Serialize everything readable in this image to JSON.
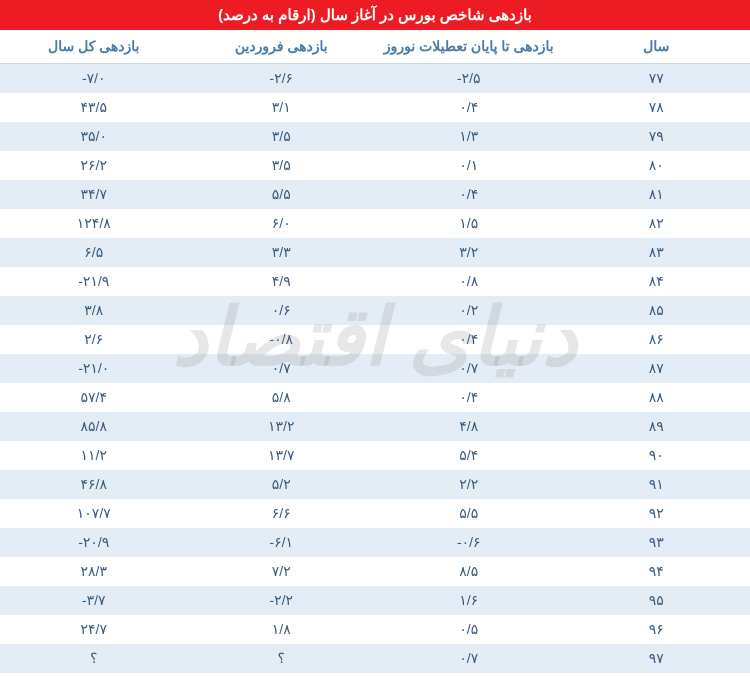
{
  "title": "بازدهی شاخص بورس در آغاز سال (ارقام به درصد)",
  "watermark": "دنیای اقتصاد",
  "colors": {
    "title_bg": "#ed1c24",
    "title_text": "#ffffff",
    "header_text": "#4a7aa8",
    "cell_text": "#3a5a7a",
    "row_odd_bg": "#e4edf5",
    "row_even_bg": "#ffffff",
    "watermark_color": "rgba(120,120,120,0.18)"
  },
  "columns": [
    {
      "key": "year",
      "label": "سال"
    },
    {
      "key": "nowruz",
      "label": "بازدهی تا پایان تعطیلات نوروز"
    },
    {
      "key": "farvardin",
      "label": "بازدهی فروردین"
    },
    {
      "key": "fullyear",
      "label": "بازدهی کل سال"
    }
  ],
  "rows": [
    {
      "year": "۷۷",
      "nowruz": "-۲/۵",
      "farvardin": "-۲/۶",
      "fullyear": "-۷/۰"
    },
    {
      "year": "۷۸",
      "nowruz": "۰/۴",
      "farvardin": "۳/۱",
      "fullyear": "۴۳/۵"
    },
    {
      "year": "۷۹",
      "nowruz": "۱/۳",
      "farvardin": "۳/۵",
      "fullyear": "۳۵/۰"
    },
    {
      "year": "۸۰",
      "nowruz": "۰/۱",
      "farvardin": "۳/۵",
      "fullyear": "۲۶/۲"
    },
    {
      "year": "۸۱",
      "nowruz": "۰/۴",
      "farvardin": "۵/۵",
      "fullyear": "۳۴/۷"
    },
    {
      "year": "۸۲",
      "nowruz": "۱/۵",
      "farvardin": "۶/۰",
      "fullyear": "۱۲۴/۸"
    },
    {
      "year": "۸۳",
      "nowruz": "۳/۲",
      "farvardin": "۳/۳",
      "fullyear": "۶/۵"
    },
    {
      "year": "۸۴",
      "nowruz": "۰/۸",
      "farvardin": "۴/۹",
      "fullyear": "-۲۱/۹"
    },
    {
      "year": "۸۵",
      "nowruz": "۰/۲",
      "farvardin": "۰/۶",
      "fullyear": "۳/۸"
    },
    {
      "year": "۸۶",
      "nowruz": "۰/۴",
      "farvardin": "-۰/۸",
      "fullyear": "۲/۶"
    },
    {
      "year": "۸۷",
      "nowruz": "۰/۷",
      "farvardin": "۰/۷",
      "fullyear": "-۲۱/۰"
    },
    {
      "year": "۸۸",
      "nowruz": "۰/۴",
      "farvardin": "۵/۸",
      "fullyear": "۵۷/۴"
    },
    {
      "year": "۸۹",
      "nowruz": "۴/۸",
      "farvardin": "۱۳/۲",
      "fullyear": "۸۵/۸"
    },
    {
      "year": "۹۰",
      "nowruz": "۵/۴",
      "farvardin": "۱۳/۷",
      "fullyear": "۱۱/۲"
    },
    {
      "year": "۹۱",
      "nowruz": "۲/۲",
      "farvardin": "۵/۲",
      "fullyear": "۴۶/۸"
    },
    {
      "year": "۹۲",
      "nowruz": "۵/۵",
      "farvardin": "۶/۶",
      "fullyear": "۱۰۷/۷"
    },
    {
      "year": "۹۳",
      "nowruz": "-۰/۶",
      "farvardin": "-۶/۱",
      "fullyear": "-۲۰/۹"
    },
    {
      "year": "۹۴",
      "nowruz": "۸/۵",
      "farvardin": "۷/۲",
      "fullyear": "۲۸/۳"
    },
    {
      "year": "۹۵",
      "nowruz": "۱/۶",
      "farvardin": "-۲/۲",
      "fullyear": "-۳/۷"
    },
    {
      "year": "۹۶",
      "nowruz": "۰/۵",
      "farvardin": "۱/۸",
      "fullyear": "۲۴/۷"
    },
    {
      "year": "۹۷",
      "nowruz": "۰/۷",
      "farvardin": "؟",
      "fullyear": "؟"
    }
  ]
}
